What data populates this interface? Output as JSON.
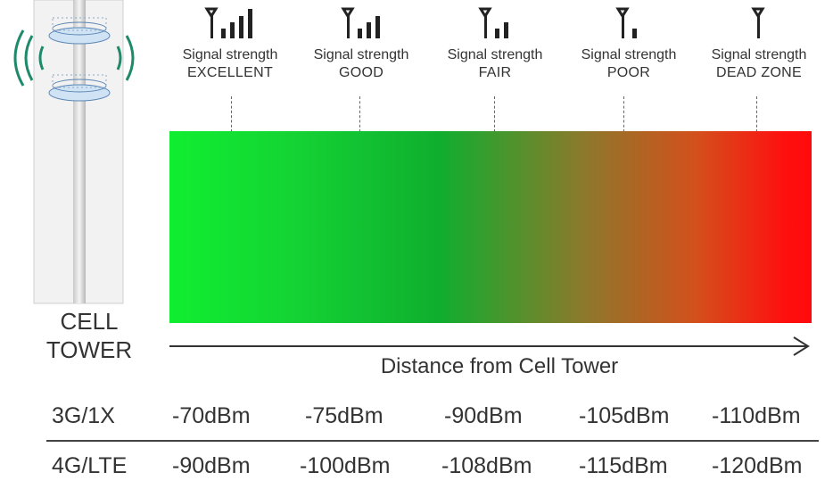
{
  "tower": {
    "label_line1": "CELL",
    "label_line2": "TOWER"
  },
  "signals": [
    {
      "line1": "Signal strength",
      "line2": "EXCELLENT",
      "bars": 4,
      "icon": "signal-excellent-icon"
    },
    {
      "line1": "Signal strength",
      "line2": "GOOD",
      "bars": 3,
      "icon": "signal-good-icon"
    },
    {
      "line1": "Signal strength",
      "line2": "FAIR",
      "bars": 2,
      "icon": "signal-fair-icon"
    },
    {
      "line1": "Signal strength",
      "line2": "POOR",
      "bars": 1,
      "icon": "signal-poor-icon"
    },
    {
      "line1": "Signal strength",
      "line2": "DEAD ZONE",
      "bars": 0,
      "icon": "signal-dead-zone-icon"
    }
  ],
  "axis": {
    "label": "Distance from Cell Tower"
  },
  "table": {
    "rows": [
      {
        "name": "3G/1X",
        "values": [
          "-70dBm",
          "-75dBm",
          "-90dBm",
          "-105dBm",
          "-110dBm"
        ]
      },
      {
        "name": "4G/LTE",
        "values": [
          "-90dBm",
          "-100dBm",
          "-108dBm",
          "-115dBm",
          "-120dBm"
        ]
      }
    ]
  },
  "colors": {
    "gradient_start": "#10ee30",
    "gradient_mid": "#0fae2e",
    "gradient_end": "#ff0a0a",
    "text": "#333333",
    "tower_wave": "#1e8a6a"
  }
}
